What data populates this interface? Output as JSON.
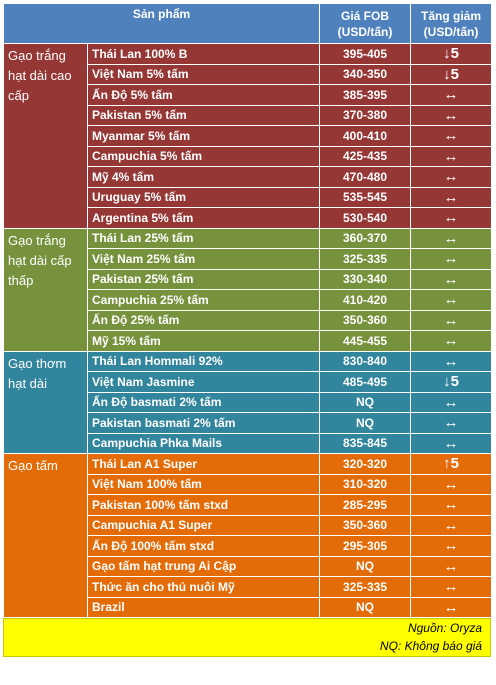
{
  "header": {
    "product": "Sản phẩm",
    "price_line1": "Giá FOB",
    "price_line2": "(USD/tấn)",
    "change_line1": "Tăng giảm",
    "change_line2": "(USD/tấn)"
  },
  "groups": [
    {
      "category": "Gạo trắng hạt dài cao cấp",
      "color": "#953735",
      "rows": [
        {
          "name": "Thái Lan 100% B",
          "price": "395-405",
          "change": "↓5"
        },
        {
          "name": "Việt Nam 5% tấm",
          "price": "340-350",
          "change": "↓5"
        },
        {
          "name": "Ấn Độ 5% tấm",
          "price": "385-395",
          "change": "↔"
        },
        {
          "name": "Pakistan 5% tấm",
          "price": "370-380",
          "change": "↔"
        },
        {
          "name": "Myanmar 5% tấm",
          "price": "400-410",
          "change": "↔"
        },
        {
          "name": "Campuchia 5% tấm",
          "price": "425-435",
          "change": "↔"
        },
        {
          "name": "Mỹ 4% tấm",
          "price": "470-480",
          "change": "↔"
        },
        {
          "name": "Uruguay 5% tấm",
          "price": "535-545",
          "change": "↔"
        },
        {
          "name": "Argentina 5% tấm",
          "price": "530-540",
          "change": "↔"
        }
      ]
    },
    {
      "category": "Gạo trắng hạt dài cấp thấp",
      "color": "#76923c",
      "rows": [
        {
          "name": "Thái Lan 25% tấm",
          "price": "360-370",
          "change": "↔"
        },
        {
          "name": "Việt Nam 25% tấm",
          "price": "325-335",
          "change": "↔"
        },
        {
          "name": "Pakistan 25% tấm",
          "price": "330-340",
          "change": "↔"
        },
        {
          "name": "Campuchia 25% tấm",
          "price": "410-420",
          "change": "↔"
        },
        {
          "name": "Ấn Độ 25% tấm",
          "price": "350-360",
          "change": "↔"
        },
        {
          "name": "Mỹ 15% tấm",
          "price": "445-455",
          "change": "↔"
        }
      ]
    },
    {
      "category": "Gạo thơm hạt dài",
      "color": "#31859c",
      "rows": [
        {
          "name": "Thái Lan Hommali 92%",
          "price": "830-840",
          "change": "↔"
        },
        {
          "name": "Việt Nam Jasmine",
          "price": "485-495",
          "change": "↓5"
        },
        {
          "name": "Ấn Độ basmati 2% tấm",
          "price": "NQ",
          "change": "↔"
        },
        {
          "name": "Pakistan basmati 2% tấm",
          "price": "NQ",
          "change": "↔"
        },
        {
          "name": "Campuchia Phka Mails",
          "price": "835-845",
          "change": "↔"
        }
      ]
    },
    {
      "category": "Gạo tấm",
      "color": "#e36c09",
      "rows": [
        {
          "name": "Thái Lan A1 Super",
          "price": "320-320",
          "change": "↑5"
        },
        {
          "name": "Việt Nam 100% tấm",
          "price": "310-320",
          "change": "↔"
        },
        {
          "name": "Pakistan 100% tấm stxd",
          "price": "285-295",
          "change": "↔"
        },
        {
          "name": "Campuchia A1 Super",
          "price": "350-360",
          "change": "↔"
        },
        {
          "name": "Ấn Độ 100% tấm stxd",
          "price": "295-305",
          "change": "↔"
        },
        {
          "name": "Gạo tấm hạt trung Ai Cập",
          "price": "NQ",
          "change": "↔"
        },
        {
          "name": "Thức ăn cho thú nuôi Mỹ",
          "price": "325-335",
          "change": "↔"
        },
        {
          "name": "Brazil",
          "price": "NQ",
          "change": "↔"
        }
      ]
    }
  ],
  "footer": {
    "source": "Nguồn: Oryza",
    "note": "NQ: Không báo giá"
  }
}
